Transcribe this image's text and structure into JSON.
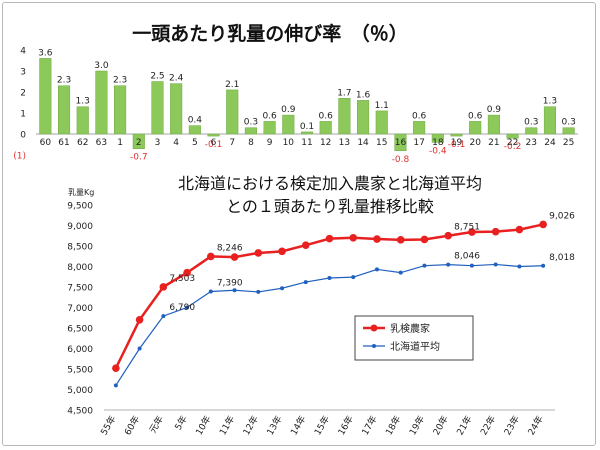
{
  "chart_data": [
    {
      "type": "bar",
      "title": "一頭あたり乳量の伸び率　（％）",
      "categories": [
        "60",
        "61",
        "62",
        "63",
        "1",
        "2",
        "3",
        "4",
        "5",
        "6",
        "7",
        "8",
        "9",
        "10",
        "11",
        "12",
        "13",
        "14",
        "15",
        "16",
        "17",
        "18",
        "19",
        "20",
        "21",
        "22",
        "23",
        "24",
        "25"
      ],
      "values": [
        3.6,
        2.3,
        1.3,
        3.0,
        2.3,
        -0.7,
        2.5,
        2.4,
        0.4,
        -0.1,
        2.1,
        0.3,
        0.6,
        0.9,
        0.1,
        0.6,
        1.7,
        1.6,
        1.1,
        -0.8,
        0.6,
        -0.4,
        -0.1,
        0.6,
        0.9,
        -0.2,
        0.3,
        1.3,
        0.3
      ],
      "ylim": [
        -1,
        4
      ],
      "yticks": [
        "(1)",
        "0",
        "1",
        "2",
        "3",
        "4"
      ],
      "colors": {
        "bar": "#8cc85a",
        "bar_edge": "#6fa844",
        "negative_label": "#e03030"
      }
    },
    {
      "type": "line",
      "title_line1": "北海道における検定加入農家と北海道平均",
      "title_line2": "との１頭あたり乳量推移比較",
      "ylabel": "乳量Kg",
      "ylim": [
        4500,
        9500
      ],
      "yticks": [
        "4,500",
        "5,000",
        "5,500",
        "6,000",
        "6,500",
        "7,000",
        "7,500",
        "8,000",
        "8,500",
        "9,000",
        "9,500"
      ],
      "categories": [
        "55年",
        "60年",
        "元年",
        "5年",
        "10年",
        "11年",
        "12年",
        "13年",
        "14年",
        "15年",
        "16年",
        "17年",
        "18年",
        "19年",
        "20年",
        "21年",
        "22年",
        "23年",
        "24年"
      ],
      "series": [
        {
          "name": "乳検農家",
          "color": "#e82020",
          "values": [
            5520,
            6700,
            7503,
            7850,
            8246,
            8230,
            8330,
            8370,
            8520,
            8680,
            8700,
            8670,
            8650,
            8660,
            8751,
            8840,
            8850,
            8900,
            9026
          ],
          "labels": {
            "2": "7,503",
            "4": "8,246",
            "14": "8,751",
            "18": "9,026"
          }
        },
        {
          "name": "北海道平均",
          "color": "#2060c0",
          "values": [
            5100,
            6000,
            6790,
            7000,
            7390,
            7420,
            7380,
            7470,
            7620,
            7720,
            7740,
            7930,
            7850,
            8020,
            8046,
            8020,
            8050,
            8000,
            8018
          ],
          "labels": {
            "2": "6,790",
            "4": "7,390",
            "14": "8,046",
            "18": "8,018"
          }
        }
      ]
    }
  ]
}
